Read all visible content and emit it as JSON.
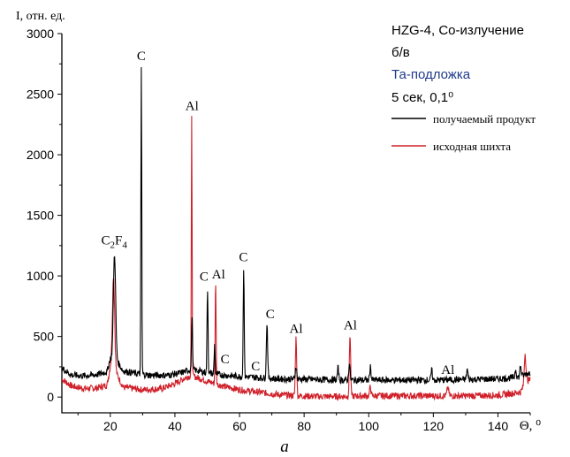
{
  "chart_data": {
    "type": "line",
    "ylabel": "I, отн. ед.",
    "xlabel": "Θ, ⁰",
    "caption": "а",
    "xlim": [
      5,
      150
    ],
    "ylim": [
      -130,
      3000
    ],
    "xticks": [
      20,
      40,
      60,
      80,
      100,
      120,
      140
    ],
    "yticks": [
      0,
      500,
      1000,
      1500,
      2000,
      2500,
      3000
    ],
    "info": {
      "line1": "HZG-4, Co-излучение",
      "line2": "б/в",
      "line3": "Та-подложка",
      "line4": "5 сек, 0,1⁰"
    },
    "colors": {
      "series1": "#000000",
      "series2": "#d0202a",
      "info_accent": "#1f3a8a"
    },
    "legend_position": "top-right",
    "series": [
      {
        "name": "получаемый продукт",
        "color": "#000000",
        "baseline": [
          [
            5,
            240
          ],
          [
            8,
            180
          ],
          [
            12,
            175
          ],
          [
            16,
            185
          ],
          [
            19,
            210
          ],
          [
            20,
            320
          ],
          [
            22,
            300
          ],
          [
            24,
            215
          ],
          [
            28,
            195
          ],
          [
            32,
            180
          ],
          [
            38,
            180
          ],
          [
            42,
            200
          ],
          [
            45,
            230
          ],
          [
            50,
            200
          ],
          [
            55,
            180
          ],
          [
            60,
            170
          ],
          [
            66,
            160
          ],
          [
            72,
            150
          ],
          [
            78,
            148
          ],
          [
            85,
            145
          ],
          [
            92,
            140
          ],
          [
            100,
            140
          ],
          [
            110,
            140
          ],
          [
            120,
            140
          ],
          [
            130,
            145
          ],
          [
            140,
            150
          ],
          [
            147,
            165
          ],
          [
            149,
            195
          ],
          [
            150,
            200
          ]
        ],
        "peaks": [
          {
            "x": 21.3,
            "y": 1180,
            "w": 0.35
          },
          {
            "x": 29.6,
            "y": 2720,
            "w": 0.13
          },
          {
            "x": 45.3,
            "y": 660,
            "w": 0.15
          },
          {
            "x": 50.1,
            "y": 900,
            "w": 0.15
          },
          {
            "x": 52.3,
            "y": 430,
            "w": 0.15
          },
          {
            "x": 61.3,
            "y": 1080,
            "w": 0.15
          },
          {
            "x": 68.5,
            "y": 610,
            "w": 0.2
          },
          {
            "x": 77.5,
            "y": 260,
            "w": 0.2
          },
          {
            "x": 90.5,
            "y": 240,
            "w": 0.2
          },
          {
            "x": 94.0,
            "y": 280,
            "w": 0.2
          },
          {
            "x": 100.5,
            "y": 250,
            "w": 0.2
          },
          {
            "x": 119.5,
            "y": 220,
            "w": 0.2
          },
          {
            "x": 130.5,
            "y": 230,
            "w": 0.2
          },
          {
            "x": 145.5,
            "y": 230,
            "w": 0.2
          },
          {
            "x": 147.0,
            "y": 260,
            "w": 0.2
          }
        ]
      },
      {
        "name": "исходная шихта",
        "color": "#d0202a",
        "baseline": [
          [
            5,
            150
          ],
          [
            8,
            90
          ],
          [
            12,
            70
          ],
          [
            16,
            75
          ],
          [
            19,
            100
          ],
          [
            20,
            250
          ],
          [
            22,
            190
          ],
          [
            24,
            80
          ],
          [
            30,
            60
          ],
          [
            36,
            70
          ],
          [
            40,
            110
          ],
          [
            44,
            170
          ],
          [
            46,
            170
          ],
          [
            50,
            130
          ],
          [
            55,
            90
          ],
          [
            60,
            60
          ],
          [
            66,
            40
          ],
          [
            72,
            20
          ],
          [
            78,
            10
          ],
          [
            85,
            5
          ],
          [
            92,
            5
          ],
          [
            100,
            10
          ],
          [
            110,
            10
          ],
          [
            120,
            10
          ],
          [
            130,
            10
          ],
          [
            140,
            15
          ],
          [
            147,
            40
          ],
          [
            149,
            140
          ],
          [
            150,
            140
          ]
        ],
        "peaks": [
          {
            "x": 21.0,
            "y": 1000,
            "w": 0.35
          },
          {
            "x": 45.2,
            "y": 2300,
            "w": 0.12
          },
          {
            "x": 52.6,
            "y": 940,
            "w": 0.15
          },
          {
            "x": 77.5,
            "y": 490,
            "w": 0.2
          },
          {
            "x": 94.2,
            "y": 520,
            "w": 0.2
          },
          {
            "x": 100.5,
            "y": 90,
            "w": 0.2
          },
          {
            "x": 124.5,
            "y": 80,
            "w": 0.25
          },
          {
            "x": 148.4,
            "y": 360,
            "w": 0.25
          }
        ]
      }
    ],
    "annotations": [
      {
        "text": "C",
        "sub": "2",
        "text2": "F",
        "sub2": "4",
        "x": 21.2,
        "y": 1260
      },
      {
        "text": "C",
        "x": 29.6,
        "y": 2780
      },
      {
        "text": "Al",
        "x": 45.3,
        "y": 2370
      },
      {
        "text": "C",
        "x": 49.0,
        "y": 960
      },
      {
        "text": "Al",
        "x": 53.5,
        "y": 980
      },
      {
        "text": "C",
        "x": 55.5,
        "y": 280
      },
      {
        "text": "C",
        "x": 61.2,
        "y": 1120
      },
      {
        "text": "C",
        "x": 65.0,
        "y": 220
      },
      {
        "text": "C",
        "x": 69.5,
        "y": 650
      },
      {
        "text": "Al",
        "x": 77.5,
        "y": 530
      },
      {
        "text": "Al",
        "x": 94.3,
        "y": 560
      },
      {
        "text": "Al",
        "x": 124.5,
        "y": 190
      }
    ]
  }
}
